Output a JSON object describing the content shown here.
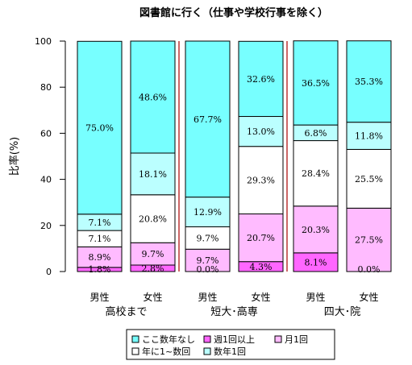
{
  "chart_data": {
    "type": "bar",
    "stacked": true,
    "title": "図書館に行く（仕事や学校行事を除く）",
    "xlabel": "",
    "ylabel": "比率(%)",
    "ylim": [
      0,
      100
    ],
    "yticks": [
      "0",
      "20",
      "40",
      "60",
      "80",
      "100"
    ],
    "groups": [
      {
        "name": "高校まで",
        "categories": [
          "男性",
          "女性"
        ]
      },
      {
        "name": "短大･高専",
        "categories": [
          "男性",
          "女性"
        ]
      },
      {
        "name": "四大･院",
        "categories": [
          "男性",
          "女性"
        ]
      }
    ],
    "series": [
      {
        "name": "週1回以上",
        "color": "#ff66ff",
        "values": [
          1.8,
          2.8,
          0.0,
          4.3,
          8.1,
          0.0
        ],
        "labels": [
          "1.8%",
          "2.8%",
          "0.0%",
          "4.3%",
          "8.1%",
          "0.0%"
        ]
      },
      {
        "name": "月1回",
        "color": "#ffbbff",
        "values": [
          8.9,
          9.7,
          9.7,
          20.7,
          20.3,
          27.5
        ],
        "labels": [
          "8.9%",
          "9.7%",
          "9.7%",
          "20.7%",
          "20.3%",
          "27.5%"
        ]
      },
      {
        "name": "年に1~数回",
        "color": "#ffffff",
        "values": [
          7.1,
          20.8,
          9.7,
          29.3,
          28.4,
          25.5
        ],
        "labels": [
          "7.1%",
          "20.8%",
          "9.7%",
          "29.3%",
          "28.4%",
          "25.5%"
        ]
      },
      {
        "name": "数年1回",
        "color": "#bbffff",
        "values": [
          7.1,
          18.1,
          12.9,
          13.0,
          6.8,
          11.8
        ],
        "labels": [
          "7.1%",
          "18.1%",
          "12.9%",
          "13.0%",
          "6.8%",
          "11.8%"
        ]
      },
      {
        "name": "ここ数年なし",
        "color": "#77ffff",
        "values": [
          75.0,
          48.6,
          67.7,
          32.6,
          36.5,
          35.3
        ],
        "labels": [
          "75.0%",
          "48.6%",
          "67.7%",
          "32.6%",
          "36.5%",
          "35.3%"
        ]
      }
    ],
    "legend": {
      "placement": "bottom",
      "items": [
        {
          "label": "ここ数年なし",
          "color": "#77ffff"
        },
        {
          "label": "年に1~数回",
          "color": "#ffffff"
        },
        {
          "label": "週1回以上",
          "color": "#ff66ff"
        },
        {
          "label": "数年1回",
          "color": "#bbffff"
        },
        {
          "label": "月1回",
          "color": "#ffbbff"
        }
      ]
    },
    "group_separators": true,
    "separator_color": "#cc6666"
  }
}
